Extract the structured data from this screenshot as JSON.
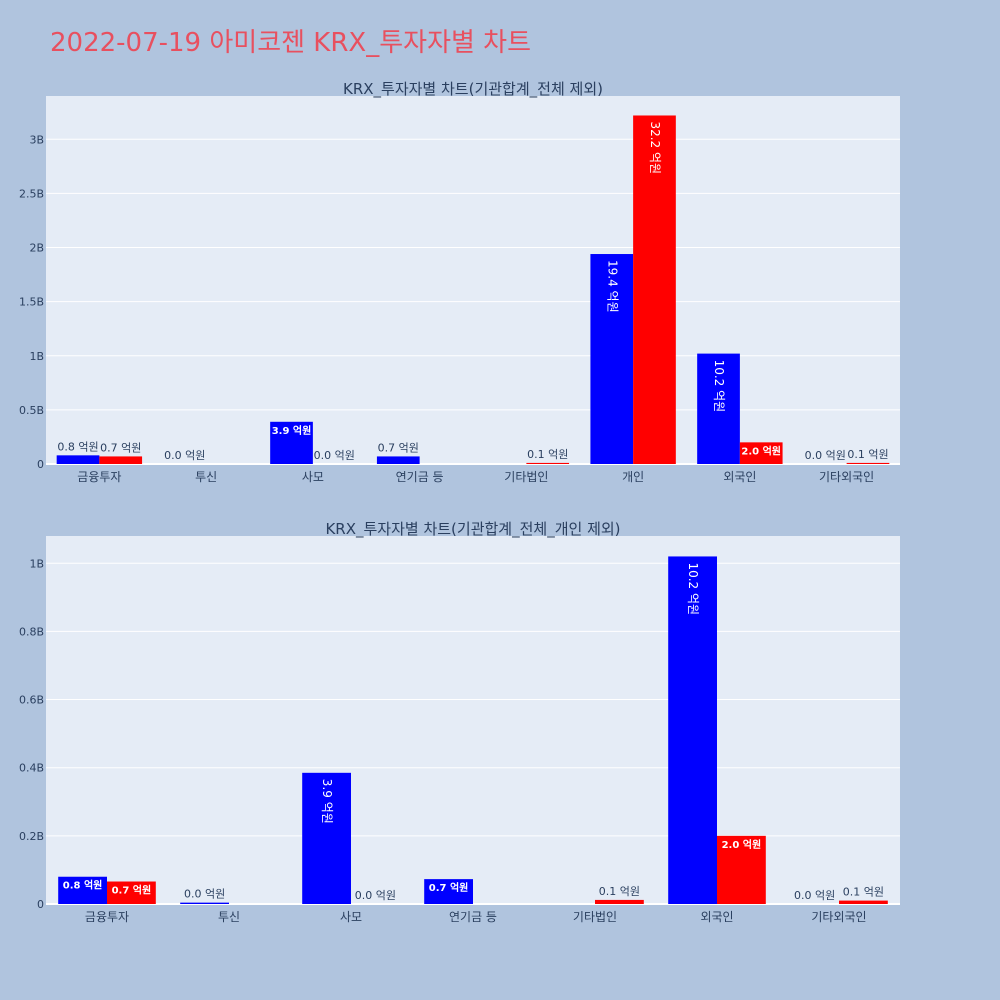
{
  "page": {
    "title": "2022-07-19 아미코젠 KRX_투자자별 차트"
  },
  "colors": {
    "buy": "#0000ff",
    "sell": "#ff0000",
    "plot_bg": "#e5ecf6",
    "page_bg": "#b0c4de",
    "title": "#e8505f",
    "grid": "#ffffff",
    "text": "#2a3f5f"
  },
  "chart_data": [
    {
      "type": "bar",
      "title": "KRX_투자자별 차트(기관합계_전체 제외)",
      "categories": [
        "금융투자",
        "투신",
        "사모",
        "연기금 등",
        "기타법인",
        "개인",
        "외국인",
        "기타외국인"
      ],
      "ylim": [
        0,
        3.4
      ],
      "yticks": [
        0,
        0.5,
        1,
        1.5,
        2,
        2.5,
        3
      ],
      "ytick_labels": [
        "0",
        "0.5B",
        "1B",
        "1.5B",
        "2B",
        "2.5B",
        "3B"
      ],
      "grid": true,
      "series": [
        {
          "color": "#0000ff",
          "values": [
            0.08,
            0.0,
            0.39,
            0.07,
            null,
            1.94,
            1.02,
            0.0
          ],
          "labels": [
            "0.8 억원",
            "0.0 억원",
            "3.9 억원",
            "0.7 억원",
            "",
            "19.4 억원",
            "10.2 억원",
            "0.0 억원"
          ]
        },
        {
          "color": "#ff0000",
          "values": [
            0.07,
            null,
            0.0,
            null,
            0.01,
            3.22,
            0.2,
            0.01
          ],
          "labels": [
            "0.7 억원",
            "",
            "0.0 억원",
            "",
            "0.1 억원",
            "32.2 억원",
            "2.0 억원",
            "0.1 억원"
          ]
        }
      ]
    },
    {
      "type": "bar",
      "title": "KRX_투자자별 차트(기관합계_전체_개인 제외)",
      "categories": [
        "금융투자",
        "투신",
        "사모",
        "연기금 등",
        "기타법인",
        "외국인",
        "기타외국인"
      ],
      "ylim": [
        0,
        1.08
      ],
      "yticks": [
        0,
        0.2,
        0.4,
        0.6,
        0.8,
        1.0
      ],
      "ytick_labels": [
        "0",
        "0.2B",
        "0.4B",
        "0.6B",
        "0.8B",
        "1B"
      ],
      "grid": true,
      "series": [
        {
          "color": "#0000ff",
          "values": [
            0.08,
            0.004,
            0.385,
            0.073,
            null,
            1.02,
            0.0
          ],
          "labels": [
            "0.8 억원",
            "0.0 억원",
            "3.9 억원",
            "0.7 억원",
            "",
            "10.2 억원",
            "0.0 억원"
          ]
        },
        {
          "color": "#ff0000",
          "values": [
            0.066,
            null,
            0.0,
            null,
            0.012,
            0.2,
            0.01
          ],
          "labels": [
            "0.7 억원",
            "",
            "0.0 억원",
            "",
            "0.1 억원",
            "2.0 억원",
            "0.1 억원"
          ]
        }
      ]
    }
  ]
}
